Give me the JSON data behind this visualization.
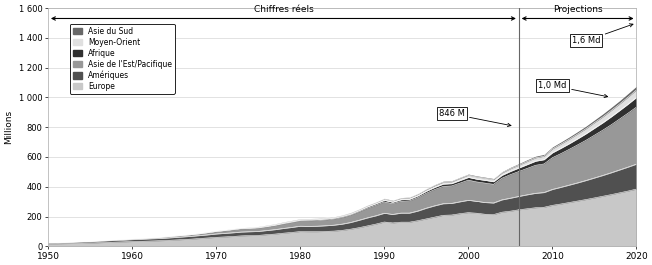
{
  "ylabel": "Millions",
  "ylim": [
    0,
    1600
  ],
  "yticks": [
    0,
    200,
    400,
    600,
    800,
    1000,
    1200,
    1400,
    1600
  ],
  "ytick_labels": [
    "0",
    "200",
    "400",
    "600",
    "800",
    "1 000",
    "1 200",
    "1 400",
    "1 600"
  ],
  "xlim_start": 1950,
  "xlim_end": 2020,
  "projection_year": 2006,
  "years_actual": [
    1950,
    1951,
    1952,
    1953,
    1954,
    1955,
    1956,
    1957,
    1958,
    1959,
    1960,
    1961,
    1962,
    1963,
    1964,
    1965,
    1966,
    1967,
    1968,
    1969,
    1970,
    1971,
    1972,
    1973,
    1974,
    1975,
    1976,
    1977,
    1978,
    1979,
    1980,
    1981,
    1982,
    1983,
    1984,
    1985,
    1986,
    1987,
    1988,
    1989,
    1990,
    1991,
    1992,
    1993,
    1994,
    1995,
    1996,
    1997,
    1998,
    1999,
    2000,
    2001,
    2002,
    2003,
    2004,
    2005,
    2006
  ],
  "europe_actual": [
    16,
    17,
    18,
    19,
    20,
    22,
    24,
    26,
    28,
    30,
    32,
    33,
    35,
    37,
    39,
    42,
    45,
    48,
    52,
    56,
    60,
    63,
    66,
    70,
    72,
    73,
    78,
    82,
    88,
    93,
    99,
    98,
    98,
    100,
    102,
    107,
    115,
    125,
    137,
    149,
    163,
    157,
    162,
    162,
    172,
    184,
    196,
    208,
    210,
    219,
    226,
    222,
    215,
    213,
    229,
    236,
    245
  ],
  "americas_actual": [
    7,
    7,
    8,
    8,
    9,
    9,
    10,
    11,
    12,
    12,
    13,
    14,
    15,
    15,
    16,
    17,
    18,
    19,
    20,
    21,
    23,
    24,
    25,
    26,
    26,
    27,
    28,
    30,
    32,
    34,
    36,
    36,
    37,
    38,
    40,
    42,
    45,
    50,
    54,
    56,
    59,
    57,
    61,
    61,
    65,
    72,
    76,
    78,
    78,
    80,
    83,
    80,
    79,
    78,
    83,
    87,
    90
  ],
  "asia_pacific_actual": [
    1,
    1,
    1,
    2,
    2,
    2,
    3,
    3,
    3,
    4,
    4,
    5,
    5,
    6,
    7,
    8,
    9,
    10,
    11,
    13,
    15,
    17,
    19,
    21,
    21,
    22,
    24,
    27,
    30,
    33,
    36,
    37,
    38,
    39,
    41,
    44,
    49,
    56,
    64,
    70,
    76,
    72,
    79,
    82,
    90,
    100,
    109,
    116,
    117,
    125,
    135,
    130,
    130,
    125,
    145,
    158,
    167
  ],
  "africa_actual": [
    0.5,
    0.5,
    0.6,
    0.6,
    0.7,
    0.7,
    0.8,
    0.9,
    1,
    1,
    1,
    1,
    1,
    1,
    2,
    2,
    2,
    2,
    2,
    3,
    3,
    3,
    4,
    4,
    4,
    5,
    5,
    5,
    6,
    6,
    6,
    7,
    7,
    7,
    7,
    8,
    8,
    9,
    10,
    11,
    11,
    10,
    11,
    11,
    12,
    14,
    15,
    16,
    16,
    18,
    19,
    19,
    19,
    18,
    20,
    22,
    24
  ],
  "middle_east_actual": [
    0.5,
    0.5,
    0.5,
    0.5,
    0.5,
    0.5,
    0.5,
    0.5,
    0.5,
    0.5,
    1,
    1,
    1,
    1,
    2,
    2,
    2,
    2,
    2,
    2,
    2,
    2,
    2,
    2,
    3,
    4,
    4,
    4,
    5,
    5,
    5,
    5,
    5,
    5,
    5,
    5,
    6,
    6,
    7,
    7,
    8,
    8,
    9,
    9,
    9,
    10,
    11,
    12,
    12,
    14,
    15,
    15,
    14,
    14,
    16,
    18,
    19
  ],
  "south_asia_actual": [
    0.5,
    0.5,
    0.5,
    0.5,
    0.5,
    0.5,
    0.5,
    0.5,
    0.5,
    0.5,
    1,
    1,
    1,
    1,
    1,
    1,
    1,
    1,
    2,
    2,
    2,
    2,
    2,
    2,
    2,
    2,
    3,
    3,
    3,
    3,
    3,
    3,
    3,
    3,
    3,
    4,
    4,
    4,
    4,
    4,
    5,
    5,
    5,
    5,
    6,
    6,
    7,
    7,
    7,
    7,
    7,
    7,
    7,
    7,
    8,
    9,
    10
  ],
  "years_proj": [
    2006,
    2007,
    2008,
    2009,
    2010,
    2011,
    2012,
    2013,
    2014,
    2015,
    2016,
    2017,
    2018,
    2019,
    2020
  ],
  "europe_proj": [
    245,
    252,
    259,
    262,
    275,
    284,
    294,
    304,
    314,
    325,
    336,
    347,
    359,
    371,
    384
  ],
  "americas_proj": [
    90,
    94,
    97,
    99,
    107,
    112,
    117,
    122,
    128,
    134,
    140,
    147,
    154,
    161,
    168
  ],
  "asia_pacific_proj": [
    167,
    177,
    188,
    192,
    213,
    226,
    240,
    255,
    270,
    287,
    304,
    322,
    342,
    362,
    383
  ],
  "africa_proj": [
    24,
    26,
    28,
    29,
    33,
    36,
    38,
    41,
    44,
    47,
    50,
    54,
    57,
    61,
    65
  ],
  "middle_east_proj": [
    19,
    21,
    22,
    23,
    26,
    28,
    30,
    32,
    34,
    37,
    39,
    42,
    44,
    47,
    50
  ],
  "south_asia_proj": [
    10,
    11,
    11,
    12,
    13,
    14,
    15,
    16,
    17,
    18,
    20,
    21,
    22,
    24,
    25
  ],
  "colors": {
    "europe": "#c8c8c8",
    "americas": "#505050",
    "asia_pacific": "#989898",
    "africa": "#303030",
    "middle_east": "#e0e0e0",
    "south_asia": "#686868"
  },
  "legend_labels": [
    "Asie du Sud",
    "Moyen-Orient",
    "Afrique",
    "Asie de l'Est/Pacifique",
    "Amériques",
    "Europe"
  ],
  "chiffres_reels_text": "Chiffres réels",
  "projections_text": "Projections",
  "bg_color": "#ffffff"
}
